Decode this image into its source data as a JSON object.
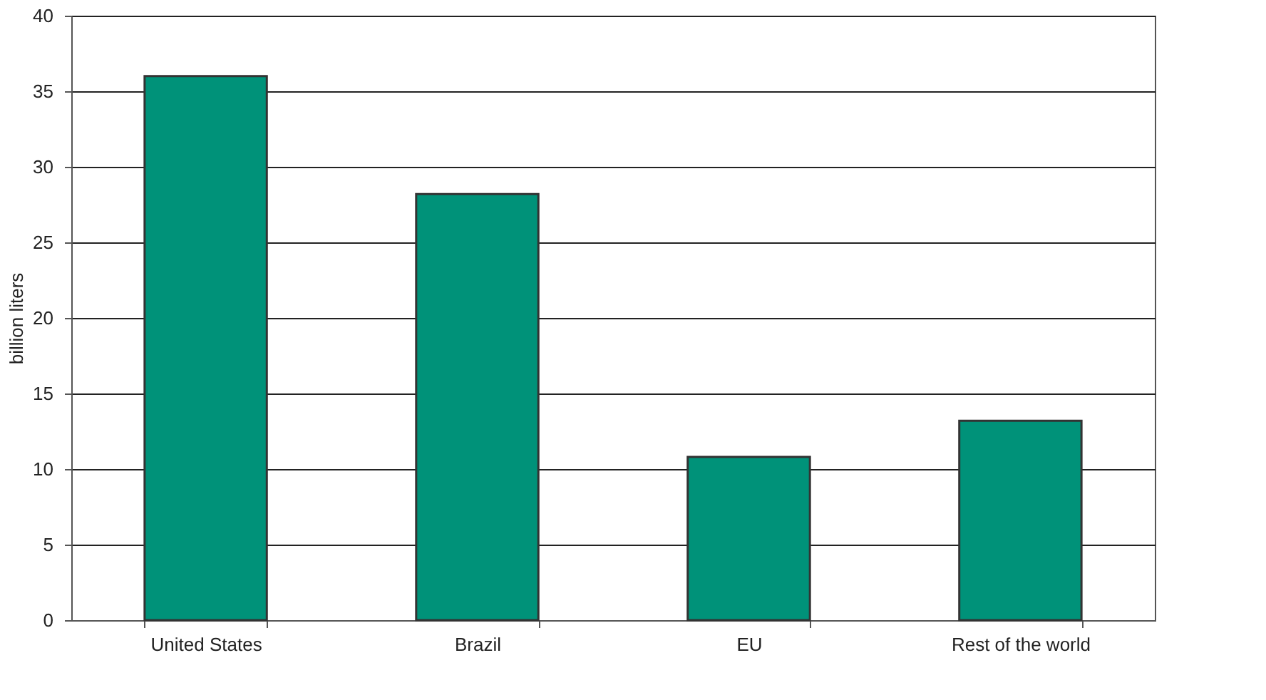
{
  "chart_data": {
    "type": "bar",
    "ylabel": "billion liters",
    "categories": [
      "United States",
      "Brazil",
      "EU",
      "Rest of the world"
    ],
    "values": [
      36,
      28.2,
      10.8,
      13.2
    ],
    "color": "#009279",
    "ylim": [
      0,
      40
    ],
    "yticks": [
      0,
      5,
      10,
      15,
      20,
      25,
      30,
      35,
      40
    ],
    "grid": "y"
  }
}
